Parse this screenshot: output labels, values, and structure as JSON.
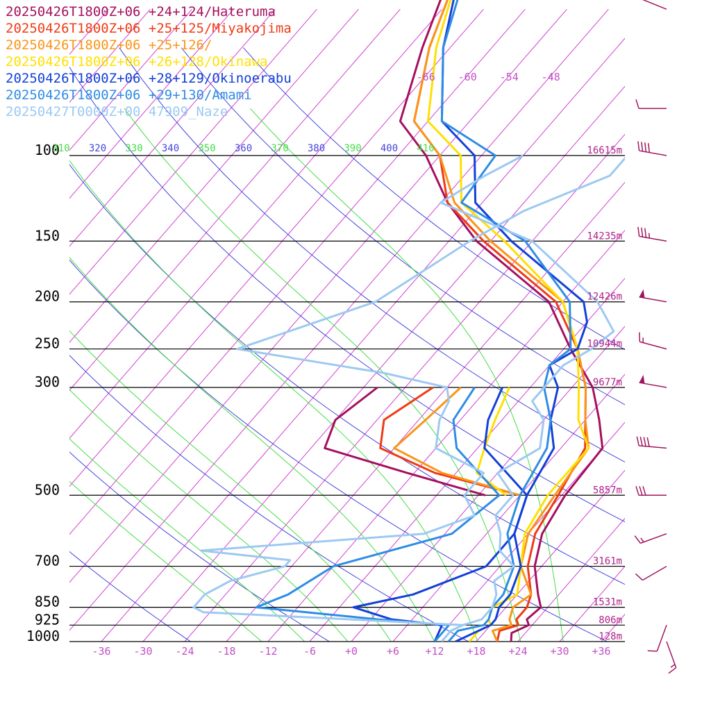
{
  "chart_data": {
    "type": "line",
    "chart_kind": "skew-T log-P sounding",
    "x_axis": {
      "unit": "°C",
      "tick_labels": [
        "-36",
        "-30",
        "-24",
        "-18",
        "-12",
        "-6",
        "+0",
        "+6",
        "+12",
        "+18",
        "+24",
        "+30",
        "+36"
      ],
      "ticks": [
        -36,
        -30,
        -24,
        -18,
        -12,
        -6,
        0,
        6,
        12,
        18,
        24,
        30,
        36
      ],
      "range": [
        -40,
        40
      ]
    },
    "y_axis": {
      "unit": "hPa",
      "scale": "log",
      "range": [
        1000,
        100
      ],
      "levels": [
        {
          "p": 100,
          "label": "100",
          "height": "16615m"
        },
        {
          "p": 150,
          "label": "150",
          "height": "14235m"
        },
        {
          "p": 200,
          "label": "200",
          "height": "12426m"
        },
        {
          "p": 250,
          "label": "250",
          "height": "10944m"
        },
        {
          "p": 300,
          "label": "300",
          "height": "9677m"
        },
        {
          "p": 500,
          "label": "500",
          "height": "5857m"
        },
        {
          "p": 700,
          "label": "700",
          "height": "3161m"
        },
        {
          "p": 850,
          "label": "850",
          "height": "1531m"
        },
        {
          "p": 925,
          "label": "925",
          "height": "806m"
        },
        {
          "p": 1000,
          "label": "1000",
          "height": "128m"
        }
      ]
    },
    "upper_isotherm_labels": [
      "-66",
      "-60",
      "-54",
      "-48"
    ],
    "theta_labels": [
      {
        "text": "310",
        "family": "theta_e"
      },
      {
        "text": "320",
        "family": "theta"
      },
      {
        "text": "330",
        "family": "theta_e"
      },
      {
        "text": "340",
        "family": "theta"
      },
      {
        "text": "350",
        "family": "theta_e"
      },
      {
        "text": "360",
        "family": "theta"
      },
      {
        "text": "370",
        "family": "theta_e"
      },
      {
        "text": "380",
        "family": "theta"
      },
      {
        "text": "390",
        "family": "theta_e"
      },
      {
        "text": "400",
        "family": "theta"
      },
      {
        "text": "410",
        "family": "theta_e"
      }
    ],
    "colors": {
      "isotherm": "#d040d0",
      "theta": "#4444dd",
      "theta_e": "#44dd44",
      "isobar": "#000000",
      "barb": "#a0155f"
    },
    "series": [
      {
        "name": "20250426T1800Z+06 +24+124/Hateruma",
        "color": "#a50f5e",
        "temperature": [
          [
            1000,
            23
          ],
          [
            960,
            22
          ],
          [
            925,
            23.5
          ],
          [
            900,
            22.5
          ],
          [
            850,
            23
          ],
          [
            800,
            21
          ],
          [
            700,
            17
          ],
          [
            600,
            14
          ],
          [
            500,
            12.5
          ],
          [
            400,
            12
          ],
          [
            350,
            8
          ],
          [
            300,
            3
          ],
          [
            250,
            -5
          ],
          [
            200,
            -14
          ],
          [
            150,
            -32
          ],
          [
            125,
            -41
          ],
          [
            100,
            -50
          ],
          [
            85,
            -58
          ],
          [
            60,
            -64
          ],
          [
            40,
            -70
          ]
        ],
        "dewpoint": [
          [
            500,
            1
          ],
          [
            450,
            -13
          ],
          [
            400,
            -28
          ],
          [
            350,
            -30
          ],
          [
            300,
            -28
          ]
        ]
      },
      {
        "name": "20250426T1800Z+06 +25+125/Miyakojima",
        "color": "#ef3a16",
        "temperature": [
          [
            1000,
            21
          ],
          [
            950,
            20
          ],
          [
            925,
            22
          ],
          [
            900,
            21
          ],
          [
            850,
            21
          ],
          [
            800,
            20
          ],
          [
            700,
            16
          ],
          [
            600,
            13
          ],
          [
            500,
            11.5
          ],
          [
            400,
            9.5
          ],
          [
            350,
            6
          ],
          [
            300,
            2
          ],
          [
            250,
            -4
          ],
          [
            200,
            -13
          ],
          [
            150,
            -31
          ],
          [
            125,
            -41
          ],
          [
            100,
            -48
          ],
          [
            85,
            -56
          ],
          [
            60,
            -63
          ],
          [
            40,
            -69
          ]
        ],
        "dewpoint": [
          [
            500,
            6
          ],
          [
            450,
            -9
          ],
          [
            400,
            -20
          ],
          [
            350,
            -23
          ],
          [
            300,
            -20
          ]
        ]
      },
      {
        "name": "20250426T1800Z+06 +25+126/",
        "color": "#fb9418",
        "temperature": [
          [
            1000,
            21
          ],
          [
            950,
            19
          ],
          [
            925,
            21
          ],
          [
            900,
            20
          ],
          [
            850,
            19
          ],
          [
            800,
            20
          ],
          [
            700,
            15
          ],
          [
            600,
            12
          ],
          [
            500,
            11
          ],
          [
            400,
            10
          ],
          [
            350,
            6
          ],
          [
            300,
            2
          ],
          [
            250,
            -4
          ],
          [
            200,
            -12
          ],
          [
            150,
            -30
          ],
          [
            125,
            -40
          ],
          [
            100,
            -48
          ],
          [
            85,
            -56
          ],
          [
            60,
            -63
          ],
          [
            40,
            -69
          ]
        ],
        "dewpoint": [
          [
            500,
            6
          ],
          [
            450,
            -8
          ],
          [
            400,
            -18
          ],
          [
            350,
            -17
          ],
          [
            300,
            -16
          ]
        ]
      },
      {
        "name": "20250426T1800Z+06 +26+128/Okinawa",
        "color": "#ffe000",
        "temperature": [
          [
            1000,
            17
          ],
          [
            950,
            17
          ],
          [
            925,
            18
          ],
          [
            900,
            17
          ],
          [
            850,
            16
          ],
          [
            800,
            18
          ],
          [
            700,
            15
          ],
          [
            600,
            11.5
          ],
          [
            500,
            10
          ],
          [
            400,
            10
          ],
          [
            350,
            5
          ],
          [
            300,
            1
          ],
          [
            250,
            -4
          ],
          [
            200,
            -12
          ],
          [
            150,
            -28
          ],
          [
            125,
            -39
          ],
          [
            100,
            -45
          ],
          [
            85,
            -54
          ],
          [
            60,
            -62
          ],
          [
            40,
            -69
          ]
        ],
        "dewpoint": [
          [
            500,
            4
          ],
          [
            450,
            -3
          ],
          [
            400,
            -5
          ],
          [
            350,
            -7
          ],
          [
            300,
            -9
          ]
        ]
      },
      {
        "name": "20250426T1800Z+06 +28+129/Okinoerabu",
        "color": "#1240d6",
        "temperature": [
          [
            1000,
            15
          ],
          [
            925,
            18
          ],
          [
            900,
            18
          ],
          [
            850,
            17
          ],
          [
            800,
            17
          ],
          [
            700,
            15
          ],
          [
            600,
            10
          ],
          [
            500,
            7
          ],
          [
            400,
            5
          ],
          [
            350,
            1
          ],
          [
            300,
            -2
          ],
          [
            270,
            -6
          ],
          [
            250,
            -4
          ],
          [
            220,
            -6
          ],
          [
            200,
            -9
          ],
          [
            150,
            -27
          ],
          [
            125,
            -37
          ],
          [
            100,
            -43
          ],
          [
            85,
            -52
          ],
          [
            60,
            -61
          ],
          [
            40,
            -69
          ]
        ],
        "dewpoint": [
          [
            1000,
            12
          ],
          [
            925,
            11
          ],
          [
            900,
            3
          ],
          [
            850,
            -4
          ],
          [
            800,
            3
          ],
          [
            700,
            10
          ],
          [
            600,
            10
          ],
          [
            500,
            7
          ],
          [
            400,
            -5
          ],
          [
            350,
            -8
          ],
          [
            300,
            -10
          ]
        ]
      },
      {
        "name": "20250426T1800Z+06 +29+130/Amami",
        "color": "#2f8ce4",
        "temperature": [
          [
            1000,
            14
          ],
          [
            950,
            14
          ],
          [
            925,
            17
          ],
          [
            900,
            17
          ],
          [
            850,
            16
          ],
          [
            800,
            16
          ],
          [
            700,
            14
          ],
          [
            600,
            9
          ],
          [
            500,
            6
          ],
          [
            400,
            4
          ],
          [
            350,
            1
          ],
          [
            300,
            -4
          ],
          [
            270,
            -6
          ],
          [
            250,
            -5
          ],
          [
            200,
            -11
          ],
          [
            150,
            -25
          ],
          [
            125,
            -39
          ],
          [
            100,
            -40
          ],
          [
            85,
            -52
          ],
          [
            60,
            -61
          ],
          [
            40,
            -68
          ]
        ],
        "dewpoint": [
          [
            1000,
            12
          ],
          [
            925,
            12
          ],
          [
            900,
            1
          ],
          [
            850,
            -18
          ],
          [
            800,
            -15
          ],
          [
            700,
            -12
          ],
          [
            600,
            1
          ],
          [
            500,
            3
          ],
          [
            400,
            -9
          ],
          [
            350,
            -13
          ],
          [
            300,
            -14
          ]
        ]
      },
      {
        "name": "20250427T0000Z+00 47909_Naze",
        "color": "#9cc9f2",
        "temperature": [
          [
            1000,
            13
          ],
          [
            950,
            13
          ],
          [
            925,
            14
          ],
          [
            900,
            16
          ],
          [
            850,
            16
          ],
          [
            800,
            15
          ],
          [
            750,
            13
          ],
          [
            700,
            14
          ],
          [
            650,
            10
          ],
          [
            600,
            8
          ],
          [
            550,
            5
          ],
          [
            500,
            5
          ],
          [
            450,
            0
          ],
          [
            400,
            3
          ],
          [
            350,
            0
          ],
          [
            320,
            -4
          ],
          [
            300,
            -4
          ],
          [
            270,
            -4
          ],
          [
            250,
            -2
          ],
          [
            230,
            -1
          ],
          [
            200,
            -7
          ],
          [
            150,
            -24
          ],
          [
            125,
            -42
          ],
          [
            110,
            -39
          ],
          [
            100,
            -36
          ]
        ],
        "dewpoint": [
          [
            1000,
            13
          ],
          [
            950,
            13
          ],
          [
            925,
            14
          ],
          [
            900,
            -3
          ],
          [
            870,
            -25
          ],
          [
            850,
            -27
          ],
          [
            800,
            -27
          ],
          [
            750,
            -25
          ],
          [
            700,
            -19
          ],
          [
            680,
            -19
          ],
          [
            650,
            -33
          ],
          [
            600,
            -3
          ],
          [
            550,
            2
          ],
          [
            500,
            -2
          ],
          [
            450,
            -2
          ],
          [
            400,
            -12
          ],
          [
            350,
            -15
          ],
          [
            320,
            -16
          ],
          [
            300,
            -18
          ],
          [
            280,
            -29
          ],
          [
            250,
            -53
          ],
          [
            200,
            -39
          ],
          [
            150,
            -33
          ],
          [
            130,
            -29
          ],
          [
            110,
            -21
          ],
          [
            100,
            -21
          ]
        ]
      }
    ],
    "wind_barbs": [
      {
        "p": 50,
        "speed_kt": 10,
        "from_deg": 292
      },
      {
        "p": 80,
        "speed_kt": 10,
        "from_deg": 270
      },
      {
        "p": 100,
        "speed_kt": 40,
        "from_deg": 280
      },
      {
        "p": 150,
        "speed_kt": 35,
        "from_deg": 280
      },
      {
        "p": 200,
        "speed_kt": 50,
        "from_deg": 280
      },
      {
        "p": 250,
        "speed_kt": 15,
        "from_deg": 285
      },
      {
        "p": 300,
        "speed_kt": 50,
        "from_deg": 280
      },
      {
        "p": 400,
        "speed_kt": 40,
        "from_deg": 275
      },
      {
        "p": 500,
        "speed_kt": 30,
        "from_deg": 270
      },
      {
        "p": 600,
        "speed_kt": 15,
        "from_deg": 250
      },
      {
        "p": 700,
        "speed_kt": 10,
        "from_deg": 240
      },
      {
        "p": 925,
        "speed_kt": 10,
        "from_deg": 200
      },
      {
        "p": 1000,
        "speed_kt": 15,
        "from_deg": 160
      }
    ]
  }
}
